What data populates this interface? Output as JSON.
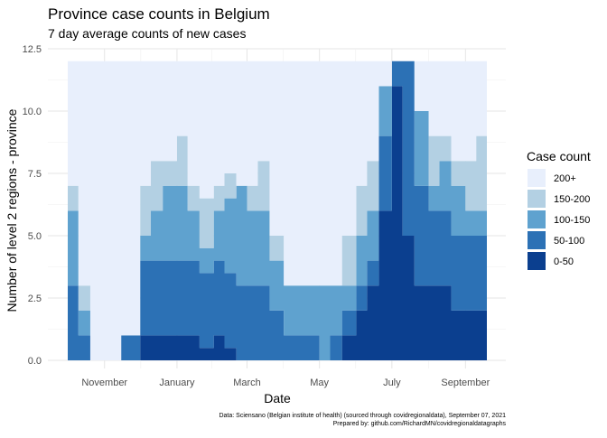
{
  "chart_data": {
    "type": "area",
    "title": "Province case counts in Belgium",
    "subtitle": "7 day average counts of new cases",
    "xlabel": "Date",
    "ylabel": "Number of level 2 regions - province",
    "ylim": [
      0,
      12.5
    ],
    "xlim": [
      "2020-09-26",
      "2021-09-15"
    ],
    "yticks": [
      {
        "value": 0,
        "label": "0.0"
      },
      {
        "value": 2.5,
        "label": "2.5"
      },
      {
        "value": 5,
        "label": "5.0"
      },
      {
        "value": 7.5,
        "label": "7.5"
      },
      {
        "value": 10,
        "label": "10.0"
      },
      {
        "value": 12.5,
        "label": "12.5"
      }
    ],
    "xticks": [
      {
        "date": "2020-11-01",
        "label": "November"
      },
      {
        "date": "2021-01-01",
        "label": "January"
      },
      {
        "date": "2021-03-01",
        "label": "March"
      },
      {
        "date": "2021-05-01",
        "label": "May"
      },
      {
        "date": "2021-07-01",
        "label": "July"
      },
      {
        "date": "2021-09-01",
        "label": "September"
      }
    ],
    "grid": true,
    "legend": {
      "title": "Case count",
      "position": "right",
      "order": [
        "200+",
        "150-200",
        "100-150",
        "50-100",
        "0-50"
      ]
    },
    "colors": {
      "200+": "#e8effc",
      "150-200": "#b3d0e3",
      "100-150": "#5fa2cf",
      "50-100": "#2c71b5",
      "0-50": "#0b3f8f"
    },
    "stack_order_bottom_to_top": [
      "0-50",
      "50-100",
      "100-150",
      "150-200",
      "200+"
    ],
    "dates": [
      "2020-10-01",
      "2020-10-10",
      "2020-10-20",
      "2020-11-01",
      "2020-11-15",
      "2020-12-01",
      "2020-12-10",
      "2020-12-20",
      "2021-01-01",
      "2021-01-10",
      "2021-01-20",
      "2021-02-01",
      "2021-02-10",
      "2021-02-20",
      "2021-03-01",
      "2021-03-10",
      "2021-03-20",
      "2021-04-01",
      "2021-04-10",
      "2021-04-20",
      "2021-05-01",
      "2021-05-10",
      "2021-05-20",
      "2021-06-01",
      "2021-06-10",
      "2021-06-20",
      "2021-07-01",
      "2021-07-10",
      "2021-07-20",
      "2021-08-01",
      "2021-08-10",
      "2021-08-20",
      "2021-09-01",
      "2021-09-10"
    ],
    "series": [
      {
        "name": "0-50",
        "values": [
          0,
          0,
          0,
          0,
          0,
          1,
          1,
          1,
          1,
          1,
          0.5,
          1,
          0.5,
          0,
          0,
          0,
          0,
          0,
          0,
          0,
          0,
          0,
          1,
          2,
          3,
          6,
          11,
          5,
          3,
          3,
          3,
          2,
          2,
          2
        ]
      },
      {
        "name": "50-100",
        "values": [
          3,
          1,
          0,
          0,
          1,
          3,
          3,
          3,
          3,
          3,
          3,
          3,
          3,
          3,
          3,
          3,
          2,
          1,
          1,
          1,
          0,
          1,
          1,
          1,
          1,
          3,
          1,
          7,
          4,
          3,
          3,
          3,
          3,
          3
        ]
      },
      {
        "name": "100-150",
        "values": [
          3,
          1,
          0,
          0,
          0,
          1,
          2,
          3,
          3,
          2,
          1,
          2,
          3,
          4,
          3,
          3,
          2,
          2,
          2,
          2,
          3,
          2,
          1,
          2,
          2,
          2,
          0,
          0,
          3,
          1,
          2,
          2,
          1,
          1
        ]
      },
      {
        "name": "150-200",
        "values": [
          1,
          1,
          0,
          0,
          0,
          2,
          2,
          1,
          2,
          1,
          2,
          1,
          1,
          0,
          1,
          2,
          1,
          0,
          0,
          0,
          0,
          0,
          2,
          2,
          2,
          0,
          0,
          0,
          0,
          2,
          1,
          1,
          2,
          3
        ]
      },
      {
        "name": "200+",
        "values": [
          5,
          9,
          12,
          12,
          11,
          5,
          4,
          4,
          3,
          5,
          5.5,
          5,
          4.5,
          5,
          5,
          4,
          7,
          9,
          9,
          9,
          9,
          9,
          7,
          5,
          4,
          1,
          0,
          0,
          2,
          3,
          3,
          4,
          4,
          3
        ]
      }
    ],
    "annotations": [
      "Data: Sciensano (Belgian institute of health) (sourced through covidregionaldata), September 07, 2021",
      "Prepared by: github.com/RichardMN/covidregionaldatagraphs"
    ]
  }
}
